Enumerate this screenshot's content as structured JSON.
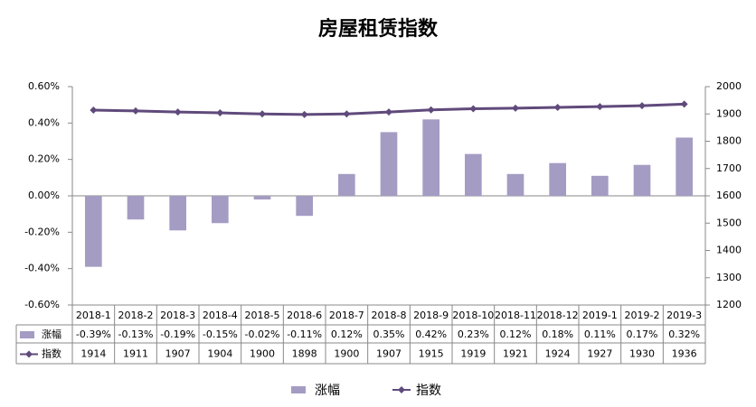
{
  "chart_data": {
    "type": "bar-line",
    "title": "房屋租赁指数",
    "categories": [
      "2018-1",
      "2018-2",
      "2018-3",
      "2018-4",
      "2018-5",
      "2018-6",
      "2018-7",
      "2018-8",
      "2018-9",
      "2018-10",
      "2018-11",
      "2018-12",
      "2019-1",
      "2019-2",
      "2019-3"
    ],
    "series": [
      {
        "name": "涨幅",
        "type": "bar",
        "color": "#a59cc4",
        "axis": "y",
        "values": [
          -0.39,
          -0.13,
          -0.19,
          -0.15,
          -0.02,
          -0.11,
          0.12,
          0.35,
          0.42,
          0.23,
          0.12,
          0.18,
          0.11,
          0.17,
          0.32
        ],
        "value_labels": [
          "-0.39%",
          "-0.13%",
          "-0.19%",
          "-0.15%",
          "-0.02%",
          "-0.11%",
          "0.12%",
          "0.35%",
          "0.42%",
          "0.23%",
          "0.12%",
          "0.18%",
          "0.11%",
          "0.17%",
          "0.32%"
        ]
      },
      {
        "name": "指数",
        "type": "line",
        "color": "#604a7b",
        "axis": "y2",
        "values": [
          1914,
          1911,
          1907,
          1904,
          1900,
          1898,
          1900,
          1907,
          1915,
          1919,
          1921,
          1924,
          1927,
          1930,
          1936
        ]
      }
    ],
    "ylim": [
      -0.6,
      0.6
    ],
    "yticks": [
      {
        "value": -0.6,
        "label": "-0.60%"
      },
      {
        "value": -0.4,
        "label": "-0.40%"
      },
      {
        "value": -0.2,
        "label": "-0.20%"
      },
      {
        "value": 0,
        "label": "0.00%"
      },
      {
        "value": 0.2,
        "label": "0.20%"
      },
      {
        "value": 0.4,
        "label": "0.40%"
      },
      {
        "value": 0.6,
        "label": "0.60%"
      }
    ],
    "y2lim": [
      1200,
      2000
    ],
    "y2ticks": [
      1200,
      1300,
      1400,
      1500,
      1600,
      1700,
      1800,
      1900,
      2000
    ],
    "legend": "bottom"
  }
}
